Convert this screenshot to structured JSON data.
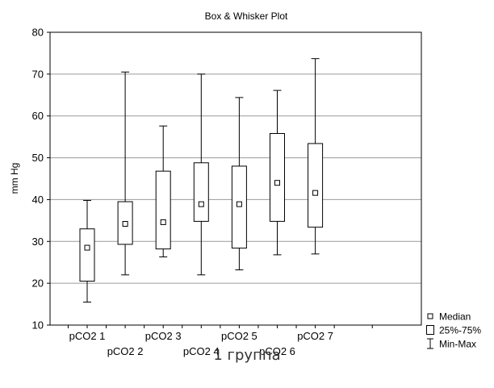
{
  "chart_data": {
    "type": "box",
    "title": "Box & Whisker Plot",
    "ylabel": "mm Hg",
    "xlabel": "",
    "ylim": [
      10,
      80
    ],
    "yticks": [
      10,
      20,
      30,
      40,
      50,
      60,
      70,
      80
    ],
    "grid": true,
    "categories": [
      "pCO2 1",
      "pCO2 2",
      "pCO2 3",
      "pCO2 4",
      "pCO2 5",
      "pCO2 6",
      "pCO2 7"
    ],
    "series": [
      {
        "category": "pCO2 1",
        "min": 15.5,
        "q1": 20.5,
        "median": 28.5,
        "q3": 33.0,
        "max": 39.8
      },
      {
        "category": "pCO2 2",
        "min": 22.0,
        "q1": 29.3,
        "median": 34.2,
        "q3": 39.5,
        "max": 70.5
      },
      {
        "category": "pCO2 3",
        "min": 26.3,
        "q1": 28.2,
        "median": 34.6,
        "q3": 46.8,
        "max": 57.6
      },
      {
        "category": "pCO2 4",
        "min": 22.0,
        "q1": 34.8,
        "median": 38.9,
        "q3": 48.8,
        "max": 70.0
      },
      {
        "category": "pCO2 5",
        "min": 23.2,
        "q1": 28.4,
        "median": 38.9,
        "q3": 48.0,
        "max": 64.4
      },
      {
        "category": "pCO2 6",
        "min": 26.8,
        "q1": 34.8,
        "median": 44.0,
        "q3": 55.8,
        "max": 66.1
      },
      {
        "category": "pCO2 7",
        "min": 27.0,
        "q1": 33.4,
        "median": 41.6,
        "q3": 53.4,
        "max": 73.7
      }
    ],
    "legend": {
      "position": "bottom-right",
      "items": [
        {
          "label": "Median",
          "symbol": "small-square"
        },
        {
          "label": "25%-75%",
          "symbol": "box"
        },
        {
          "label": "Min-Max",
          "symbol": "whisker"
        }
      ]
    }
  },
  "caption": "1 группа",
  "colors": {
    "grid": "#9a9a9a",
    "line": "#000000",
    "caption": "#333333"
  }
}
